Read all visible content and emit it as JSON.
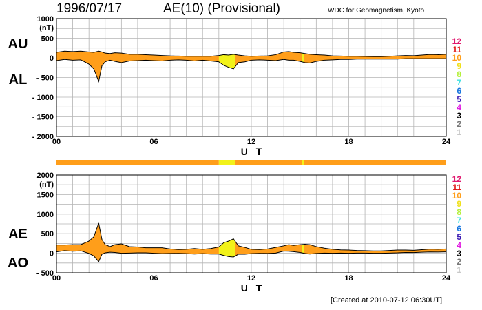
{
  "header": {
    "date": "1996/07/17",
    "title": "AE(10) (Provisional)",
    "credit": "WDC for Geomagnetism, Kyoto"
  },
  "footer": {
    "created": "[Created at 2010-07-12 06:30UT]"
  },
  "colors": {
    "main_fill": "#FF9E1A",
    "yellow_fill": "#F2F21A",
    "grid": "#B4B4B4",
    "frame": "#000000"
  },
  "chart_data": [
    {
      "type": "area",
      "panel": "AU/AL",
      "upper_label": "AU",
      "lower_label": "AL",
      "unit": "(nT)",
      "xlabel": "U T",
      "xlim": [
        0,
        24
      ],
      "ylim": [
        -2000,
        1000
      ],
      "yticks": [
        1000,
        500,
        0,
        -500,
        -1000,
        -1500,
        -2000
      ],
      "ytick_labels": [
        "1000",
        "500",
        "0",
        "- 500",
        "- 1000",
        "- 1500",
        "- 2000"
      ],
      "xticks": [
        0,
        6,
        12,
        18,
        24
      ],
      "xtick_labels": [
        "00",
        "06",
        "12",
        "18",
        "24"
      ],
      "x": [
        0,
        0.5,
        1,
        1.5,
        2,
        2.3,
        2.6,
        2.8,
        3,
        3.3,
        3.6,
        4,
        4.5,
        5,
        5.5,
        6,
        6.5,
        7,
        7.5,
        8,
        8.5,
        9,
        9.5,
        10,
        10.3,
        10.6,
        10.9,
        11.2,
        11.6,
        12,
        12.5,
        13,
        13.5,
        14,
        14.3,
        14.6,
        15,
        15.3,
        15.6,
        16,
        16.5,
        17,
        17.5,
        18,
        18.5,
        19,
        19.5,
        20,
        20.5,
        21,
        21.5,
        22,
        22.5,
        23,
        23.5,
        24
      ],
      "series": [
        {
          "name": "AU",
          "values": [
            140,
            170,
            160,
            170,
            150,
            140,
            170,
            150,
            120,
            110,
            130,
            120,
            90,
            90,
            80,
            70,
            60,
            50,
            45,
            40,
            40,
            40,
            40,
            60,
            80,
            70,
            90,
            70,
            50,
            40,
            45,
            50,
            80,
            150,
            160,
            140,
            130,
            110,
            90,
            80,
            70,
            50,
            45,
            40,
            40,
            35,
            30,
            30,
            40,
            50,
            60,
            55,
            70,
            85,
            80,
            90
          ]
        },
        {
          "name": "AL",
          "values": [
            -70,
            -40,
            -60,
            -50,
            -160,
            -280,
            -600,
            -200,
            -100,
            -60,
            -90,
            -120,
            -80,
            -70,
            -60,
            -70,
            -80,
            -60,
            -50,
            -60,
            -80,
            -60,
            -80,
            -100,
            -190,
            -240,
            -280,
            -120,
            -100,
            -60,
            -50,
            -60,
            -70,
            -40,
            -60,
            -60,
            -90,
            -120,
            -130,
            -90,
            -60,
            -50,
            -40,
            -40,
            -30,
            -30,
            -30,
            -30,
            -30,
            -30,
            -20,
            -20,
            -20,
            -20,
            -20,
            -20
          ]
        }
      ]
    },
    {
      "type": "area",
      "panel": "AE/AO",
      "upper_label": "AE",
      "lower_label": "AO",
      "unit": "(nT)",
      "xlabel": "U T",
      "xlim": [
        0,
        24
      ],
      "ylim": [
        -500,
        2000
      ],
      "yticks": [
        2000,
        1500,
        1000,
        500,
        0,
        -500
      ],
      "ytick_labels": [
        "2000",
        "1500",
        "1000",
        "500",
        "0",
        "- 500"
      ],
      "xticks": [
        0,
        6,
        12,
        18,
        24
      ],
      "xtick_labels": [
        "00",
        "06",
        "12",
        "18",
        "24"
      ],
      "x": [
        0,
        0.5,
        1,
        1.5,
        2,
        2.3,
        2.6,
        2.8,
        3,
        3.3,
        3.6,
        4,
        4.5,
        5,
        5.5,
        6,
        6.5,
        7,
        7.5,
        8,
        8.5,
        9,
        9.5,
        10,
        10.3,
        10.6,
        10.9,
        11.2,
        11.6,
        12,
        12.5,
        13,
        13.5,
        14,
        14.3,
        14.6,
        15,
        15.3,
        15.6,
        16,
        16.5,
        17,
        17.5,
        18,
        18.5,
        19,
        19.5,
        20,
        20.5,
        21,
        21.5,
        22,
        22.5,
        23,
        23.5,
        24
      ],
      "series": [
        {
          "name": "AE",
          "values": [
            210,
            210,
            220,
            220,
            310,
            420,
            770,
            350,
            220,
            170,
            220,
            240,
            170,
            160,
            140,
            140,
            140,
            110,
            95,
            100,
            120,
            100,
            120,
            160,
            270,
            310,
            370,
            190,
            150,
            100,
            95,
            110,
            150,
            190,
            220,
            200,
            220,
            230,
            220,
            170,
            130,
            100,
            85,
            80,
            70,
            65,
            60,
            60,
            70,
            80,
            80,
            75,
            90,
            105,
            100,
            110
          ]
        },
        {
          "name": "AO",
          "values": [
            35,
            65,
            50,
            60,
            -5,
            -70,
            -215,
            -25,
            10,
            25,
            20,
            0,
            5,
            10,
            10,
            0,
            -10,
            -5,
            -3,
            -10,
            -20,
            -10,
            -20,
            -20,
            -55,
            -85,
            -95,
            -25,
            -25,
            -10,
            -3,
            -5,
            5,
            55,
            50,
            40,
            20,
            -5,
            -20,
            -5,
            5,
            0,
            3,
            0,
            5,
            3,
            0,
            0,
            5,
            10,
            20,
            18,
            25,
            33,
            30,
            35
          ]
        }
      ]
    }
  ],
  "activity_bar": {
    "segments": [
      {
        "from": 0,
        "to": 10,
        "level": "10"
      },
      {
        "from": 10,
        "to": 11,
        "level": "9"
      },
      {
        "from": 11,
        "to": 15.1,
        "level": "10"
      },
      {
        "from": 15.1,
        "to": 15.25,
        "level": "9"
      },
      {
        "from": 15.25,
        "to": 24,
        "level": "10"
      }
    ],
    "yellow_intervals": [
      [
        10,
        11
      ],
      [
        15.1,
        15.25
      ]
    ]
  },
  "legend_levels": [
    {
      "label": "12",
      "color": "#E0186E"
    },
    {
      "label": "11",
      "color": "#E01818"
    },
    {
      "label": "10",
      "color": "#FF9E1A"
    },
    {
      "label": "9",
      "color": "#F0E01A"
    },
    {
      "label": "8",
      "color": "#B4F03C"
    },
    {
      "label": "7",
      "color": "#3CE0E0"
    },
    {
      "label": "6",
      "color": "#1A78E0"
    },
    {
      "label": "5",
      "color": "#3C1AB4"
    },
    {
      "label": "4",
      "color": "#E01AE0"
    },
    {
      "label": "3",
      "color": "#000000"
    },
    {
      "label": "2",
      "color": "#787878"
    },
    {
      "label": "1",
      "color": "#C8C8C8"
    }
  ]
}
